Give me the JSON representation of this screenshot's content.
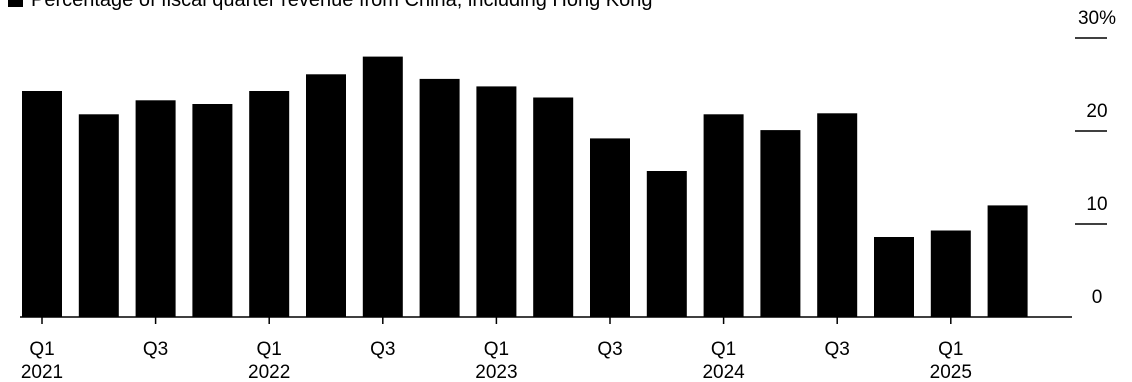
{
  "chart_data": {
    "type": "bar",
    "legend": {
      "label": "Percentage of fiscal quarter revenue from China, including Hong Kong",
      "color": "#000000"
    },
    "categories": [
      "Q1 2021",
      "Q2 2021",
      "Q3 2021",
      "Q4 2021",
      "Q1 2022",
      "Q2 2022",
      "Q3 2022",
      "Q4 2022",
      "Q1 2023",
      "Q2 2023",
      "Q3 2023",
      "Q4 2023",
      "Q1 2024",
      "Q2 2024",
      "Q3 2024",
      "Q4 2024",
      "Q1 2025",
      "Q2 2025"
    ],
    "values": [
      24.3,
      21.8,
      23.3,
      22.9,
      24.3,
      26.1,
      28.0,
      25.6,
      24.8,
      23.6,
      19.2,
      15.7,
      21.8,
      20.1,
      21.9,
      8.6,
      9.3,
      12.0
    ],
    "bar_color": "#000000",
    "x_ticks": [
      {
        "index": 0,
        "quarter": "Q1",
        "year": "2021"
      },
      {
        "index": 2,
        "quarter": "Q3",
        "year": ""
      },
      {
        "index": 4,
        "quarter": "Q1",
        "year": "2022"
      },
      {
        "index": 6,
        "quarter": "Q3",
        "year": ""
      },
      {
        "index": 8,
        "quarter": "Q1",
        "year": "2023"
      },
      {
        "index": 10,
        "quarter": "Q3",
        "year": ""
      },
      {
        "index": 12,
        "quarter": "Q1",
        "year": "2024"
      },
      {
        "index": 14,
        "quarter": "Q3",
        "year": ""
      },
      {
        "index": 16,
        "quarter": "Q1",
        "year": "2025"
      }
    ],
    "y_ticks": [
      {
        "value": 0,
        "label": "0"
      },
      {
        "value": 10,
        "label": "10"
      },
      {
        "value": 20,
        "label": "20"
      },
      {
        "value": 30,
        "label": "30%"
      }
    ],
    "ylim": [
      0,
      30
    ],
    "y_axis_position": "right",
    "grid": false,
    "legend_position": "top-left"
  }
}
